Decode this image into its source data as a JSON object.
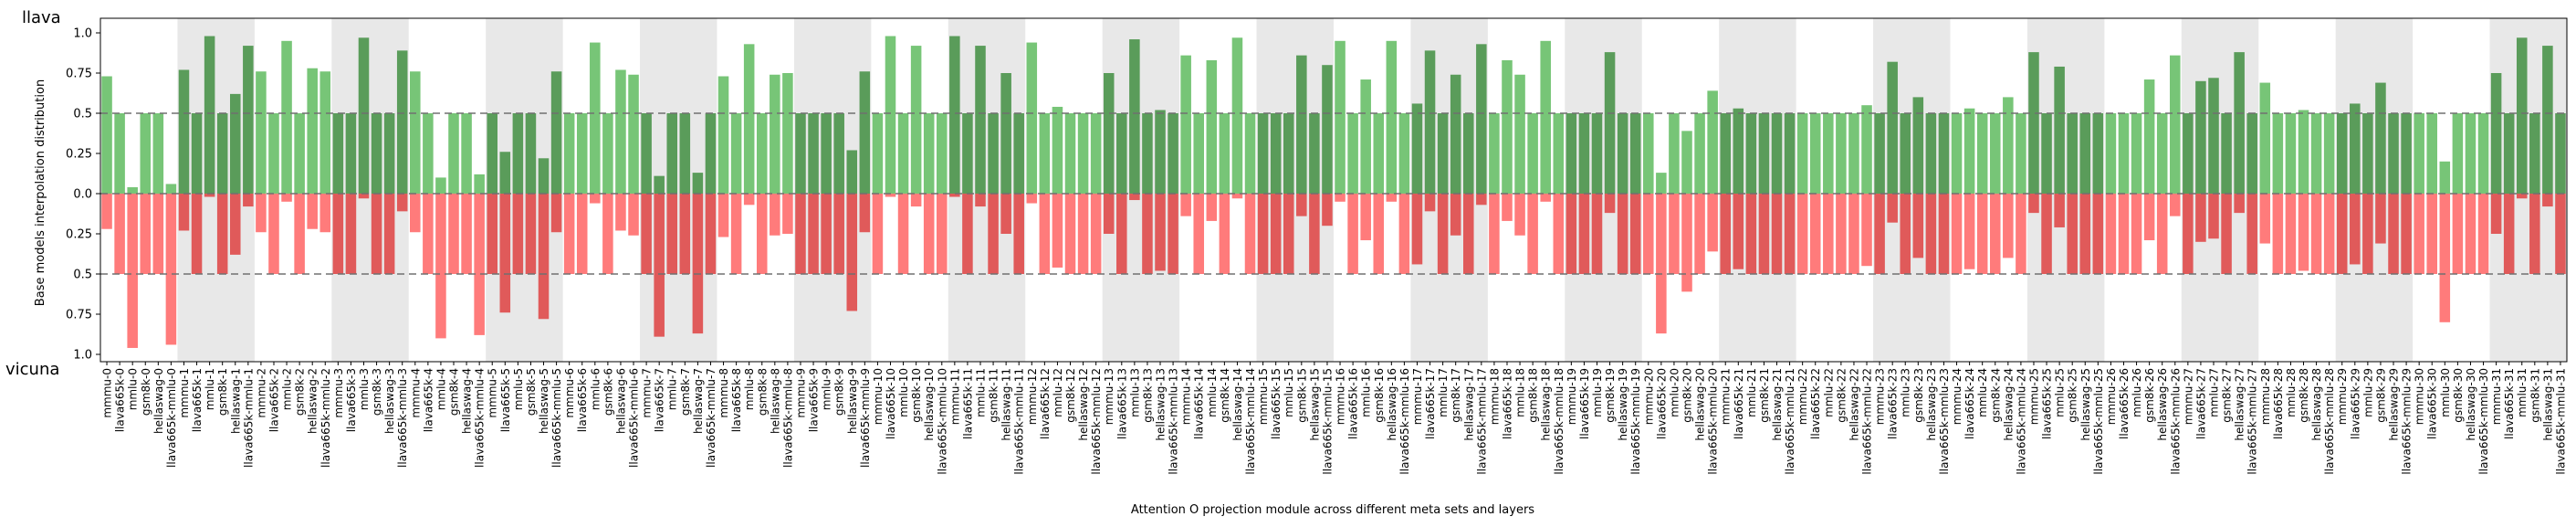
{
  "chart_data": {
    "type": "bar",
    "top_label": "llava",
    "bottom_label": "vicuna",
    "xlabel": "Attention O projection module across different meta sets and layers",
    "ylabel": "Base models interpolation distribution",
    "ylim": [
      -1.0,
      1.0
    ],
    "yticks": [
      {
        "v": 1.0,
        "label": "1.0"
      },
      {
        "v": 0.75,
        "label": "0.75"
      },
      {
        "v": 0.5,
        "label": "0.5"
      },
      {
        "v": 0.25,
        "label": "0.25"
      },
      {
        "v": 0.0,
        "label": "0.0"
      },
      {
        "v": -0.25,
        "label": "0.25"
      },
      {
        "v": -0.5,
        "label": "0.5"
      },
      {
        "v": -0.75,
        "label": "0.75"
      },
      {
        "v": -1.0,
        "label": "1.0"
      }
    ],
    "reference_lines": [
      0.5,
      -0.5
    ],
    "meta_sets": [
      "mmmu",
      "llava665k",
      "gsm8k",
      "hellaswag",
      "llava665k-mmlu"
    ],
    "layers": 32,
    "alternate_layer_shading": true,
    "colors": {
      "llava_light": "#77c577",
      "llava_dark": "#5a9c5a",
      "vicuna_light": "#ff7b7b",
      "vicuna_dark": "#e05a5a",
      "shade": "#e8e8e8",
      "dashed": "#707070"
    },
    "categories": [
      "mmmu-0",
      "llava665k-0",
      "mmlu-0",
      "gsm8k-0",
      "hellaswag-0",
      "llava665k-mmlu-0",
      "mmmu-1",
      "llava665k-1",
      "mmlu-1",
      "gsm8k-1",
      "hellaswag-1",
      "llava665k-mmlu-1",
      "mmmu-2",
      "llava665k-2",
      "mmlu-2",
      "gsm8k-2",
      "hellaswag-2",
      "llava665k-mmlu-2",
      "mmmu-3",
      "llava665k-3",
      "mmlu-3",
      "gsm8k-3",
      "hellaswag-3",
      "llava665k-mmlu-3",
      "mmmu-4",
      "llava665k-4",
      "mmlu-4",
      "gsm8k-4",
      "hellaswag-4",
      "llava665k-mmlu-4",
      "mmmu-5",
      "llava665k-5",
      "mmlu-5",
      "gsm8k-5",
      "hellaswag-5",
      "llava665k-mmlu-5",
      "mmmu-6",
      "llava665k-6",
      "mmlu-6",
      "gsm8k-6",
      "hellaswag-6",
      "llava665k-mmlu-6",
      "mmmu-7",
      "llava665k-7",
      "mmlu-7",
      "gsm8k-7",
      "hellaswag-7",
      "llava665k-mmlu-7",
      "mmmu-8",
      "llava665k-8",
      "mmlu-8",
      "gsm8k-8",
      "hellaswag-8",
      "llava665k-mmlu-8",
      "mmmu-9",
      "llava665k-9",
      "mmlu-9",
      "gsm8k-9",
      "hellaswag-9",
      "llava665k-mmlu-9",
      "mmmu-10",
      "llava665k-10",
      "mmlu-10",
      "gsm8k-10",
      "hellaswag-10",
      "llava665k-mmlu-10",
      "mmmu-11",
      "llava665k-11",
      "mmlu-11",
      "gsm8k-11",
      "hellaswag-11",
      "llava665k-mmlu-11",
      "mmmu-12",
      "llava665k-12",
      "mmlu-12",
      "gsm8k-12",
      "hellaswag-12",
      "llava665k-mmlu-12",
      "mmmu-13",
      "llava665k-13",
      "mmlu-13",
      "gsm8k-13",
      "hellaswag-13",
      "llava665k-mmlu-13",
      "mmmu-14",
      "llava665k-14",
      "mmlu-14",
      "gsm8k-14",
      "hellaswag-14",
      "llava665k-mmlu-14",
      "mmmu-15",
      "llava665k-15",
      "mmlu-15",
      "gsm8k-15",
      "hellaswag-15",
      "llava665k-mmlu-15",
      "mmmu-16",
      "llava665k-16",
      "mmlu-16",
      "gsm8k-16",
      "hellaswag-16",
      "llava665k-mmlu-16",
      "mmmu-17",
      "llava665k-17",
      "mmlu-17",
      "gsm8k-17",
      "hellaswag-17",
      "llava665k-mmlu-17",
      "mmmu-18",
      "llava665k-18",
      "mmlu-18",
      "gsm8k-18",
      "hellaswag-18",
      "llava665k-mmlu-18",
      "mmmu-19",
      "llava665k-19",
      "mmlu-19",
      "gsm8k-19",
      "hellaswag-19",
      "llava665k-mmlu-19",
      "mmmu-20",
      "llava665k-20",
      "mmlu-20",
      "gsm8k-20",
      "hellaswag-20",
      "llava665k-mmlu-20",
      "mmmu-21",
      "llava665k-21",
      "mmlu-21",
      "gsm8k-21",
      "hellaswag-21",
      "llava665k-mmlu-21",
      "mmmu-22",
      "llava665k-22",
      "mmlu-22",
      "gsm8k-22",
      "hellaswag-22",
      "llava665k-mmlu-22",
      "mmmu-23",
      "llava665k-23",
      "mmlu-23",
      "gsm8k-23",
      "hellaswag-23",
      "llava665k-mmlu-23",
      "mmmu-24",
      "llava665k-24",
      "mmlu-24",
      "gsm8k-24",
      "hellaswag-24",
      "llava665k-mmlu-24",
      "mmmu-25",
      "llava665k-25",
      "mmlu-25",
      "gsm8k-25",
      "hellaswag-25",
      "llava665k-mmlu-25",
      "mmmu-26",
      "llava665k-26",
      "mmlu-26",
      "gsm8k-26",
      "hellaswag-26",
      "llava665k-mmlu-26",
      "mmmu-27",
      "llava665k-27",
      "mmlu-27",
      "gsm8k-27",
      "hellaswag-27",
      "llava665k-mmlu-27",
      "mmmu-28",
      "llava665k-28",
      "mmlu-28",
      "gsm8k-28",
      "hellaswag-28",
      "llava665k-mmlu-28",
      "mmmu-29",
      "llava665k-29",
      "mmlu-29",
      "gsm8k-29",
      "hellaswag-29",
      "llava665k-mmlu-29",
      "mmmu-30",
      "llava665k-30",
      "mmlu-30",
      "gsm8k-30",
      "hellaswag-30",
      "llava665k-mmlu-30",
      "mmmu-31",
      "llava665k-31",
      "mmlu-31",
      "gsm8k-31",
      "hellaswag-31",
      "llava665k-mmlu-31"
    ],
    "series": [
      {
        "name": "llava",
        "values": [
          0.73,
          0.5,
          0.04,
          0.5,
          0.5,
          0.06,
          0.77,
          0.5,
          0.98,
          0.5,
          0.62,
          0.92,
          0.76,
          0.5,
          0.95,
          0.5,
          0.78,
          0.76,
          0.5,
          0.5,
          0.97,
          0.5,
          0.5,
          0.89,
          0.76,
          0.5,
          0.1,
          0.5,
          0.5,
          0.12,
          0.5,
          0.26,
          0.5,
          0.5,
          0.22,
          0.76,
          0.5,
          0.5,
          0.94,
          0.5,
          0.77,
          0.74,
          0.5,
          0.11,
          0.5,
          0.5,
          0.13,
          0.5,
          0.73,
          0.5,
          0.93,
          0.5,
          0.74,
          0.75,
          0.5,
          0.5,
          0.5,
          0.5,
          0.27,
          0.76,
          0.5,
          0.98,
          0.5,
          0.92,
          0.5,
          0.5,
          0.98,
          0.5,
          0.92,
          0.5,
          0.75,
          0.5,
          0.94,
          0.5,
          0.54,
          0.5,
          0.5,
          0.5,
          0.75,
          0.5,
          0.96,
          0.5,
          0.52,
          0.5,
          0.86,
          0.5,
          0.83,
          0.5,
          0.97,
          0.5,
          0.5,
          0.5,
          0.5,
          0.86,
          0.5,
          0.8,
          0.95,
          0.5,
          0.71,
          0.5,
          0.95,
          0.5,
          0.56,
          0.89,
          0.5,
          0.74,
          0.5,
          0.93,
          0.5,
          0.83,
          0.74,
          0.5,
          0.95,
          0.5,
          0.5,
          0.5,
          0.5,
          0.88,
          0.5,
          0.5,
          0.5,
          0.13,
          0.5,
          0.39,
          0.5,
          0.64,
          0.5,
          0.53,
          0.5,
          0.5,
          0.5,
          0.5,
          0.5,
          0.5,
          0.5,
          0.5,
          0.5,
          0.55,
          0.5,
          0.82,
          0.5,
          0.6,
          0.5,
          0.5,
          0.5,
          0.53,
          0.5,
          0.5,
          0.6,
          0.5,
          0.88,
          0.5,
          0.79,
          0.5,
          0.5,
          0.5,
          0.5,
          0.5,
          0.5,
          0.71,
          0.5,
          0.86,
          0.5,
          0.7,
          0.72,
          0.5,
          0.88,
          0.5,
          0.69,
          0.5,
          0.5,
          0.52,
          0.5,
          0.5,
          0.5,
          0.56,
          0.5,
          0.69,
          0.5,
          0.5,
          0.5,
          0.5,
          0.2,
          0.5,
          0.5,
          0.5,
          0.75,
          0.5,
          0.97,
          0.5,
          0.92,
          0.5
        ]
      },
      {
        "name": "vicuna",
        "values": [
          0.22,
          0.5,
          0.96,
          0.5,
          0.5,
          0.94,
          0.23,
          0.5,
          0.02,
          0.5,
          0.38,
          0.08,
          0.24,
          0.5,
          0.05,
          0.5,
          0.22,
          0.24,
          0.5,
          0.5,
          0.03,
          0.5,
          0.5,
          0.11,
          0.24,
          0.5,
          0.9,
          0.5,
          0.5,
          0.88,
          0.5,
          0.74,
          0.5,
          0.5,
          0.78,
          0.24,
          0.5,
          0.5,
          0.06,
          0.5,
          0.23,
          0.26,
          0.5,
          0.89,
          0.5,
          0.5,
          0.87,
          0.5,
          0.27,
          0.5,
          0.07,
          0.5,
          0.26,
          0.25,
          0.5,
          0.5,
          0.5,
          0.5,
          0.73,
          0.24,
          0.5,
          0.02,
          0.5,
          0.08,
          0.5,
          0.5,
          0.02,
          0.5,
          0.08,
          0.5,
          0.25,
          0.5,
          0.06,
          0.5,
          0.46,
          0.5,
          0.5,
          0.5,
          0.25,
          0.5,
          0.04,
          0.5,
          0.48,
          0.5,
          0.14,
          0.5,
          0.17,
          0.5,
          0.03,
          0.5,
          0.5,
          0.5,
          0.5,
          0.14,
          0.5,
          0.2,
          0.05,
          0.5,
          0.29,
          0.5,
          0.05,
          0.5,
          0.44,
          0.11,
          0.5,
          0.26,
          0.5,
          0.07,
          0.5,
          0.17,
          0.26,
          0.5,
          0.05,
          0.5,
          0.5,
          0.5,
          0.5,
          0.12,
          0.5,
          0.5,
          0.5,
          0.87,
          0.5,
          0.61,
          0.5,
          0.36,
          0.5,
          0.47,
          0.5,
          0.5,
          0.5,
          0.5,
          0.5,
          0.5,
          0.5,
          0.5,
          0.5,
          0.45,
          0.5,
          0.18,
          0.5,
          0.4,
          0.5,
          0.5,
          0.5,
          0.47,
          0.5,
          0.5,
          0.4,
          0.5,
          0.12,
          0.5,
          0.21,
          0.5,
          0.5,
          0.5,
          0.5,
          0.5,
          0.5,
          0.29,
          0.5,
          0.14,
          0.5,
          0.3,
          0.28,
          0.5,
          0.12,
          0.5,
          0.31,
          0.5,
          0.5,
          0.48,
          0.5,
          0.5,
          0.5,
          0.44,
          0.5,
          0.31,
          0.5,
          0.5,
          0.5,
          0.5,
          0.8,
          0.5,
          0.5,
          0.5,
          0.25,
          0.5,
          0.03,
          0.5,
          0.08,
          0.5
        ]
      }
    ]
  }
}
